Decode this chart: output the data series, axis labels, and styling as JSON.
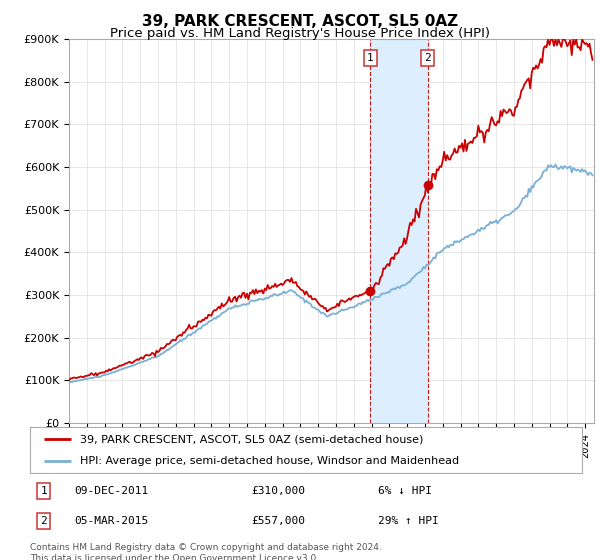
{
  "title": "39, PARK CRESCENT, ASCOT, SL5 0AZ",
  "subtitle": "Price paid vs. HM Land Registry's House Price Index (HPI)",
  "ylabel_ticks": [
    "£0",
    "£100K",
    "£200K",
    "£300K",
    "£400K",
    "£500K",
    "£600K",
    "£700K",
    "£800K",
    "£900K"
  ],
  "ylim": [
    0,
    900000
  ],
  "xlim_start": 1995.0,
  "xlim_end": 2024.5,
  "sale1_date": 2011.93,
  "sale1_price": 310000,
  "sale1_label": "1",
  "sale1_text": "09-DEC-2011",
  "sale1_amount": "£310,000",
  "sale1_hpi": "6% ↓ HPI",
  "sale2_date": 2015.17,
  "sale2_price": 557000,
  "sale2_label": "2",
  "sale2_text": "05-MAR-2015",
  "sale2_amount": "£557,000",
  "sale2_hpi": "29% ↑ HPI",
  "line_color_property": "#cc0000",
  "line_color_hpi": "#7ab0d4",
  "shade_color": "#ddeeff",
  "legend_property": "39, PARK CRESCENT, ASCOT, SL5 0AZ (semi-detached house)",
  "legend_hpi": "HPI: Average price, semi-detached house, Windsor and Maidenhead",
  "footnote": "Contains HM Land Registry data © Crown copyright and database right 2024.\nThis data is licensed under the Open Government Licence v3.0.",
  "title_fontsize": 11,
  "subtitle_fontsize": 9.5,
  "background_color": "#ffffff",
  "grid_color": "#dddddd"
}
